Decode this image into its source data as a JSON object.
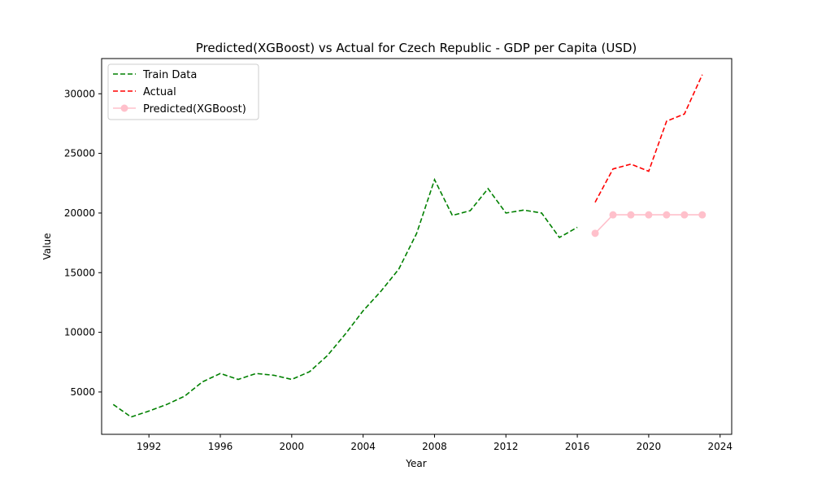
{
  "chart_data": {
    "type": "line",
    "title": "Predicted(XGBoost) vs Actual for Czech Republic - GDP per Capita (USD)",
    "xlabel": "Year",
    "ylabel": "Value",
    "xlim": [
      1989.35,
      2024.65
    ],
    "ylim": [
      1450,
      32950
    ],
    "xticks": [
      1992,
      1996,
      2000,
      2004,
      2008,
      2012,
      2016,
      2020,
      2024
    ],
    "yticks": [
      5000,
      10000,
      15000,
      20000,
      25000,
      30000
    ],
    "grid": false,
    "legend_position": "upper left",
    "series": [
      {
        "name": "Train Data",
        "color": "#008000",
        "style": "dashed",
        "marker": "none",
        "x": [
          1990,
          1991,
          1992,
          1993,
          1994,
          1995,
          1996,
          1997,
          1998,
          1999,
          2000,
          2001,
          2002,
          2003,
          2004,
          2005,
          2006,
          2007,
          2008,
          2009,
          2010,
          2011,
          2012,
          2013,
          2014,
          2015,
          2016
        ],
        "values": [
          3950,
          2900,
          3400,
          3950,
          4650,
          5850,
          6550,
          6050,
          6550,
          6400,
          6050,
          6700,
          8050,
          9850,
          11800,
          13450,
          15300,
          18300,
          22800,
          19800,
          20200,
          22050,
          20000,
          20250,
          20000,
          17950,
          18800
        ]
      },
      {
        "name": "Actual",
        "color": "#ff0000",
        "style": "dashed",
        "marker": "none",
        "x": [
          2017,
          2018,
          2019,
          2020,
          2021,
          2022,
          2023
        ],
        "values": [
          20900,
          23700,
          24100,
          23500,
          27700,
          28300,
          31600
        ]
      },
      {
        "name": "Predicted(XGBoost)",
        "color": "#ffc0cb",
        "style": "solid",
        "marker": "circle",
        "x": [
          2017,
          2018,
          2019,
          2020,
          2021,
          2022,
          2023
        ],
        "values": [
          18300,
          19850,
          19850,
          19850,
          19850,
          19850,
          19850
        ]
      }
    ]
  }
}
